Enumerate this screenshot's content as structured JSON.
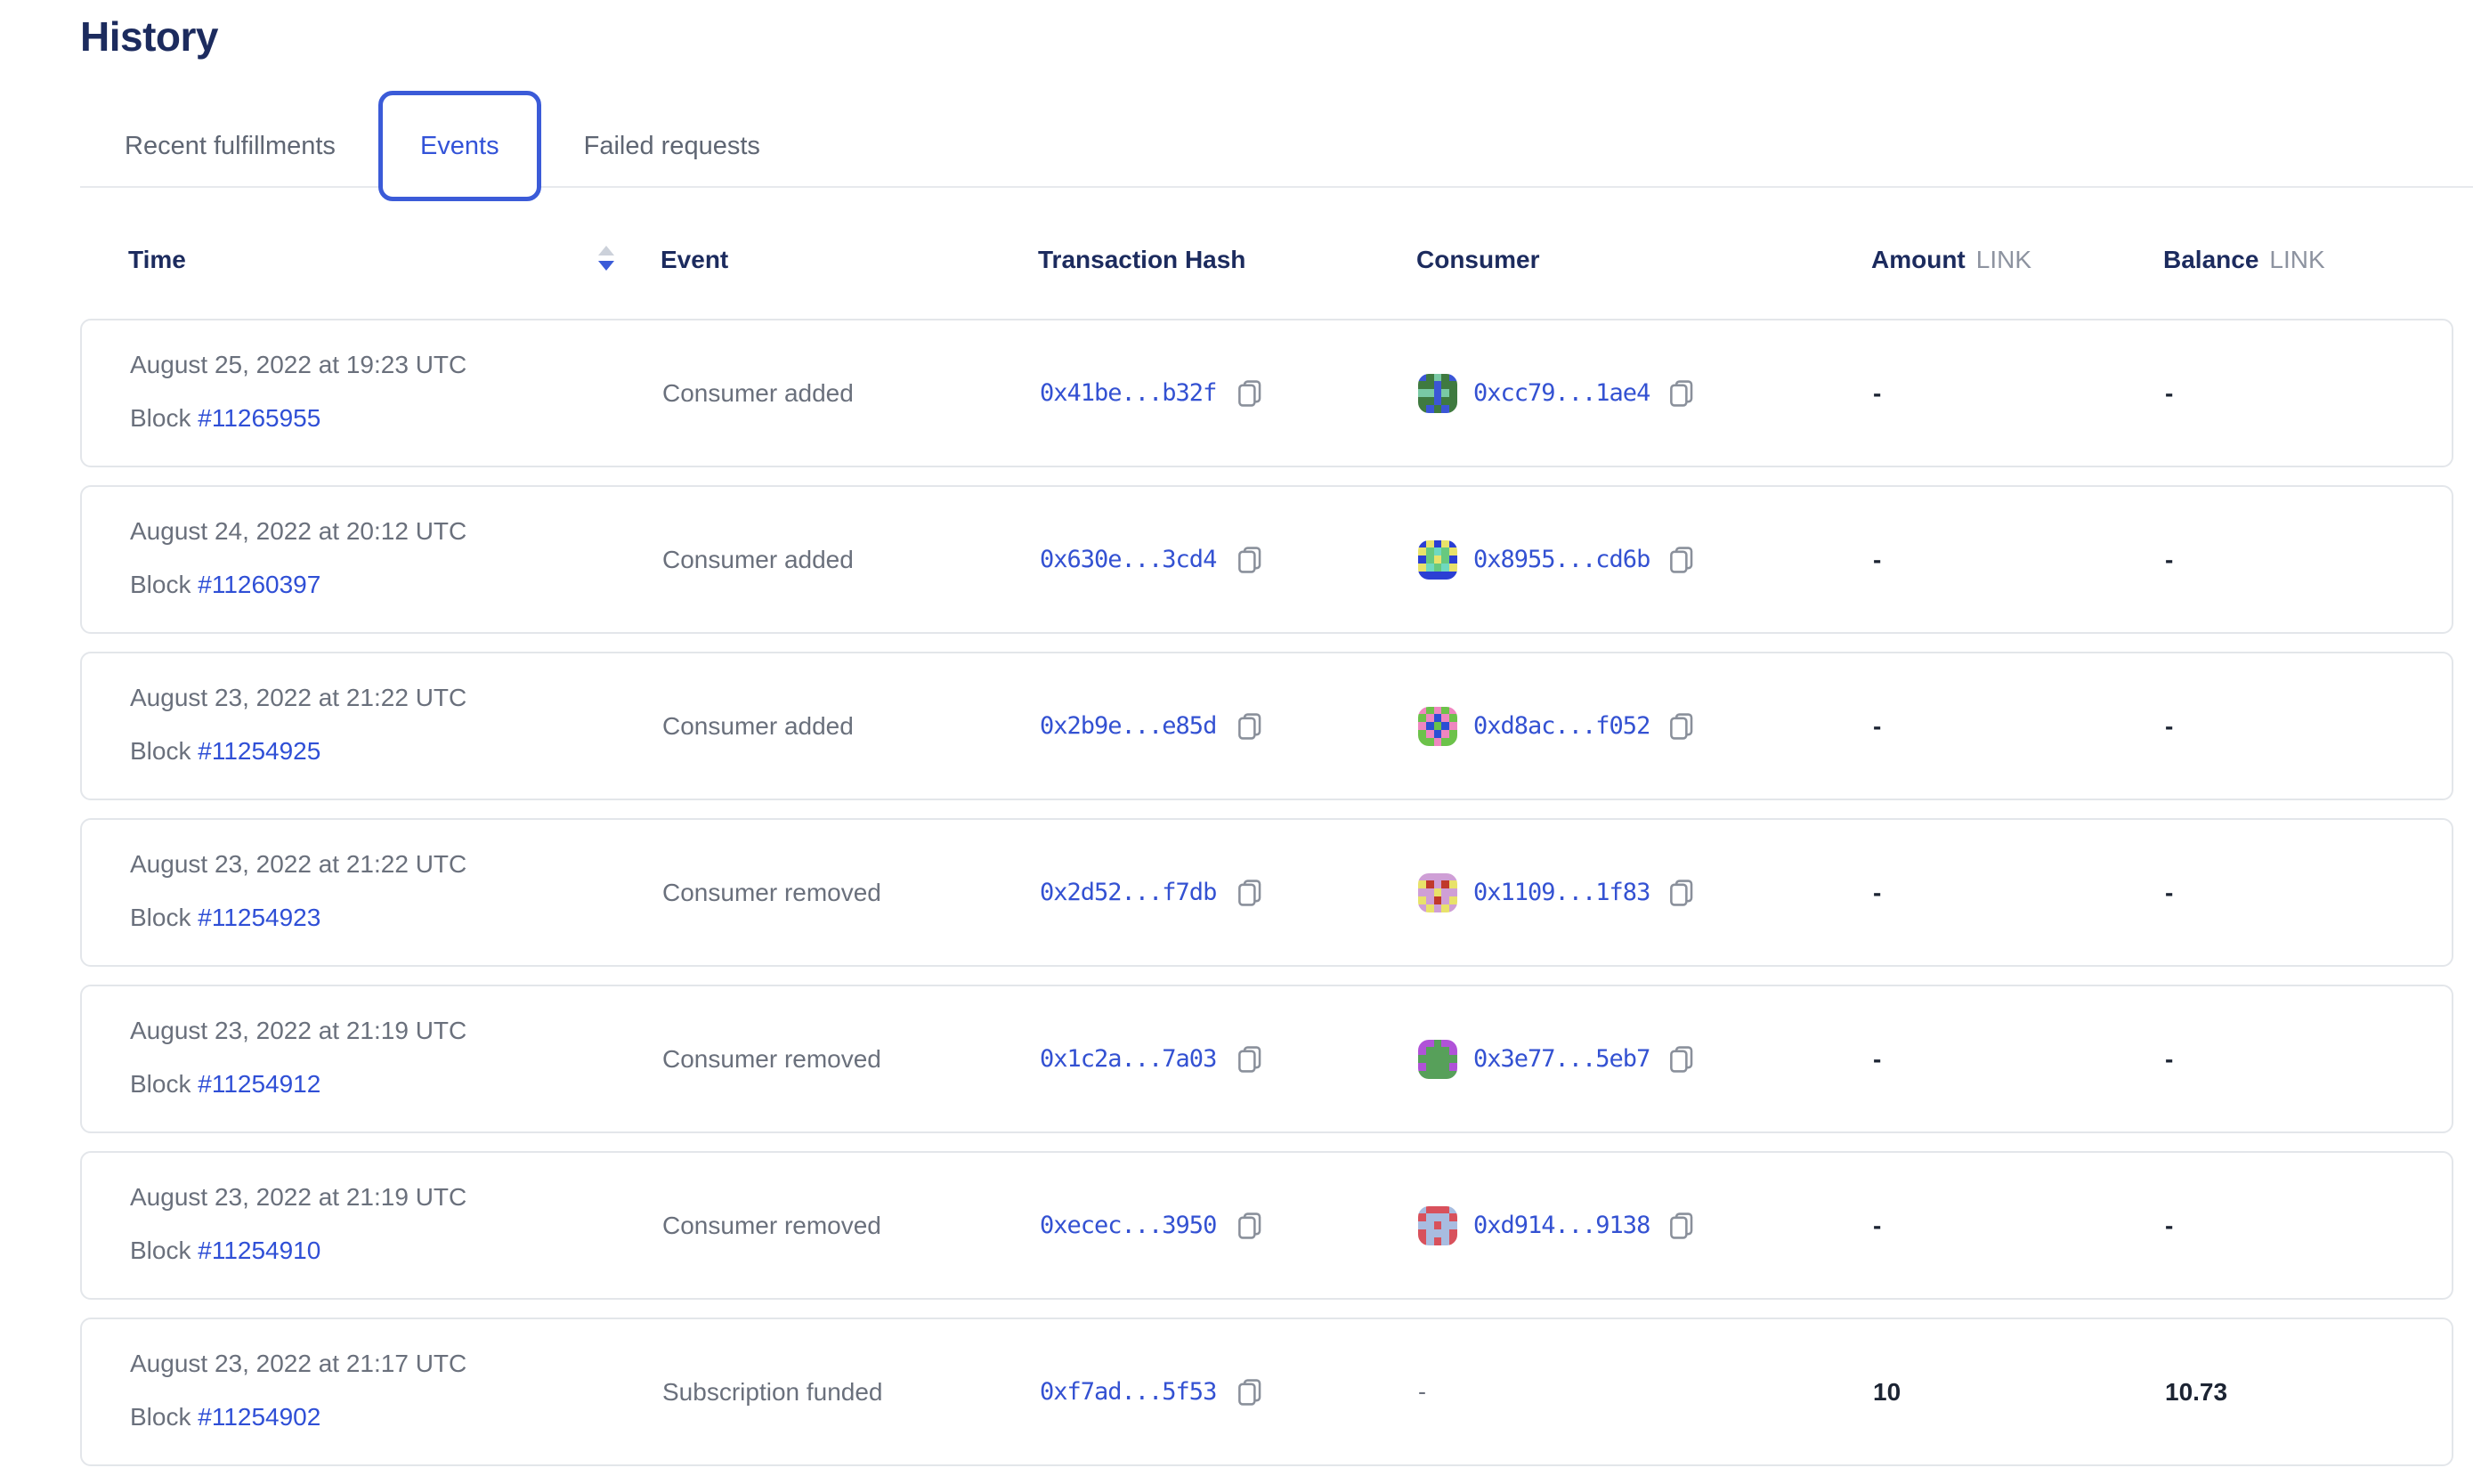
{
  "page_title": "History",
  "tabs": {
    "recent": "Recent fulfillments",
    "events": "Events",
    "failed": "Failed requests",
    "active": "Events"
  },
  "labels": {
    "block": "Block"
  },
  "table": {
    "header": {
      "time": "Time",
      "event": "Event",
      "tx_hash": "Transaction Hash",
      "consumer": "Consumer",
      "amount": "Amount",
      "balance": "Balance",
      "link_unit": "LINK",
      "sort_column": "Time",
      "sort_direction": "descending"
    },
    "rows": [
      {
        "date": "August 25, 2022 at 19:23 UTC",
        "block": "#11265955",
        "event": "Consumer added",
        "tx": "0x41be...b32f",
        "consumer": "0xcc79...1ae4",
        "amount": "-",
        "balance": "-",
        "identicon": {
          "palette": {
            "g": "#3f7a40",
            "b": "#3b56d6",
            "t": "#79c9a4"
          },
          "grid": [
            "bgtgb",
            "ggbgg",
            "ttbtg",
            "ggbgg",
            "gbgbg"
          ]
        }
      },
      {
        "date": "August 24, 2022 at 20:12 UTC",
        "block": "#11260397",
        "event": "Consumer added",
        "tx": "0x630e...3cd4",
        "consumer": "0x8955...cd6b",
        "amount": "-",
        "balance": "-",
        "identicon": {
          "palette": {
            "b": "#2b3fd4",
            "y": "#e8e26a",
            "g": "#67c97f",
            "t": "#6fd9c0"
          },
          "grid": [
            "bybyb",
            "ygtgy",
            "bgygb",
            "ytgty",
            "bbbbb"
          ]
        }
      },
      {
        "date": "August 23, 2022 at 21:22 UTC",
        "block": "#11254925",
        "event": "Consumer added",
        "tx": "0x2b9e...e85d",
        "consumer": "0xd8ac...f052",
        "amount": "-",
        "balance": "-",
        "identicon": {
          "palette": {
            "g": "#6cc24a",
            "p": "#ef86c0",
            "b": "#2b4fd4"
          },
          "grid": [
            "pgpgp",
            "gpbpg",
            "pbgbp",
            "gpbpg",
            "ggpgg"
          ]
        }
      },
      {
        "date": "August 23, 2022 at 21:22 UTC",
        "block": "#11254923",
        "event": "Consumer removed",
        "tx": "0x2d52...f7db",
        "consumer": "0x1109...1f83",
        "amount": "-",
        "balance": "-",
        "identicon": {
          "palette": {
            "m": "#cf9fd6",
            "y": "#e8e26a",
            "r": "#c0392b"
          },
          "grid": [
            "mmmmm",
            "yrmry",
            "mmymm",
            "ymrmy",
            "mymym"
          ]
        }
      },
      {
        "date": "August 23, 2022 at 21:19 UTC",
        "block": "#11254912",
        "event": "Consumer removed",
        "tx": "0x1c2a...7a03",
        "consumer": "0x3e77...5eb7",
        "amount": "-",
        "balance": "-",
        "identicon": {
          "palette": {
            "g": "#57a05a",
            "u": "#b052d8"
          },
          "grid": [
            "uuguu",
            "ugggu",
            "ggggg",
            "ugggu",
            "ggggg"
          ]
        }
      },
      {
        "date": "August 23, 2022 at 21:19 UTC",
        "block": "#11254910",
        "event": "Consumer removed",
        "tx": "0xecec...3950",
        "consumer": "0xd914...9138",
        "amount": "-",
        "balance": "-",
        "identicon": {
          "palette": {
            "r": "#d8515c",
            "c": "#a8bce0"
          },
          "grid": [
            "crrrc",
            "rcccr",
            "ccrcc",
            "rcccr",
            "rcrcr"
          ]
        }
      },
      {
        "date": "August 23, 2022 at 21:17 UTC",
        "block": "#11254902",
        "event": "Subscription funded",
        "tx": "0xf7ad...5f53",
        "consumer": "-",
        "amount": "10",
        "balance": "10.73",
        "identicon": null
      }
    ]
  },
  "colors": {
    "accent_blue": "#3353d8",
    "link_blue": "#2f4fd6",
    "heading_navy": "#1c2b5e",
    "text_gray": "#6a707c",
    "unit_gray": "#8d93a0",
    "card_border": "#e3e6ea"
  }
}
